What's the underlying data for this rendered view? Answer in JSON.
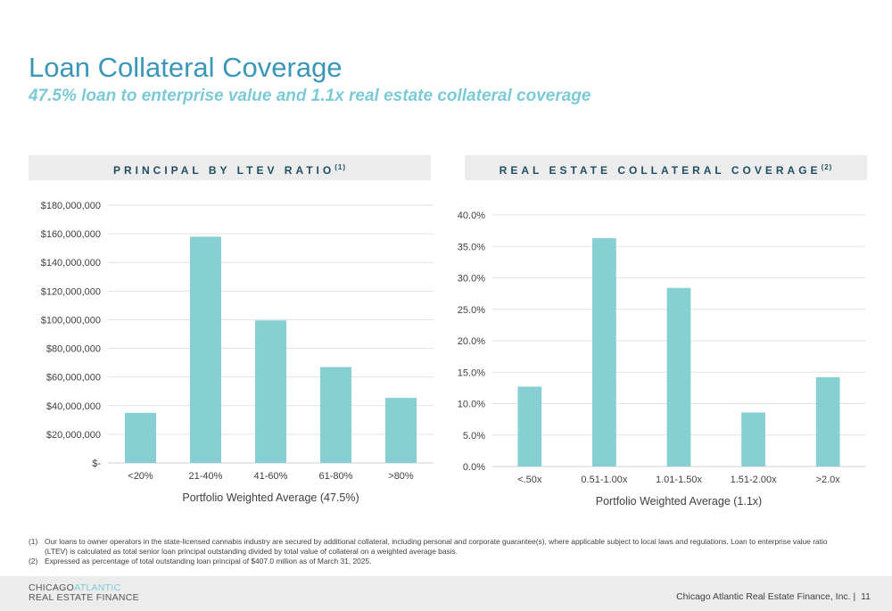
{
  "header": {
    "title": "Loan Collateral Coverage",
    "subtitle": "47.5% loan to enterprise value and 1.1x real estate collateral coverage"
  },
  "panels": [
    {
      "label": "PRINCIPAL BY LTEV RATIO",
      "note": "(1)"
    },
    {
      "label": "REAL ESTATE COLLATERAL COVERAGE",
      "note": "(2)"
    }
  ],
  "chart_data": [
    {
      "type": "bar",
      "categories": [
        "<20%",
        "21-40%",
        "41-60%",
        "61-80%",
        ">80%"
      ],
      "values": [
        35000000,
        158000000,
        99500000,
        67000000,
        45500000
      ],
      "xlabel": "Portfolio Weighted Average (47.5%)",
      "ylabel": "",
      "ylim": [
        0,
        180000000
      ],
      "yticks": [
        0,
        20000000,
        40000000,
        60000000,
        80000000,
        100000000,
        120000000,
        140000000,
        160000000,
        180000000
      ],
      "ytick_labels": [
        "$-",
        "$20,000,000",
        "$40,000,000",
        "$60,000,000",
        "$80,000,000",
        "$100,000,000",
        "$120,000,000",
        "$140,000,000",
        "$160,000,000",
        "$180,000,000"
      ],
      "grid": true,
      "color": "#86d0d3"
    },
    {
      "type": "bar",
      "categories": [
        "<.50x",
        "0.51-1.00x",
        "1.01-1.50x",
        "1.51-2.00x",
        ">2.0x"
      ],
      "values": [
        12.7,
        36.3,
        28.4,
        8.6,
        14.2
      ],
      "xlabel": "Portfolio Weighted Average (1.1x)",
      "ylabel": "",
      "ylim": [
        0,
        40
      ],
      "yticks": [
        0,
        5,
        10,
        15,
        20,
        25,
        30,
        35,
        40
      ],
      "ytick_labels": [
        "0.0%",
        "5.0%",
        "10.0%",
        "15.0%",
        "20.0%",
        "25.0%",
        "30.0%",
        "35.0%",
        "40.0%"
      ],
      "grid": true,
      "color": "#86d0d3"
    }
  ],
  "footnotes": [
    {
      "num": "(1)",
      "text": "Our loans to owner operators in the state-licensed cannabis industry are secured by additional collateral, including personal and corporate guarantee(s), where applicable subject to local laws and regulations. Loan to enterprise value ratio (LTEV) is calculated as total senior loan principal outstanding divided by total value of collateral on a weighted average basis."
    },
    {
      "num": "(2)",
      "text": "Expressed as percentage of total outstanding loan principal of $407.0 million as of March 31, 2025."
    }
  ],
  "footer": {
    "logo_line1_a": "CHICAGO",
    "logo_line1_b": "ATLANTIC",
    "logo_line2": "REAL ESTATE FINANCE",
    "company": "Chicago Atlantic Real Estate Finance, Inc. |",
    "page_number": "11"
  }
}
